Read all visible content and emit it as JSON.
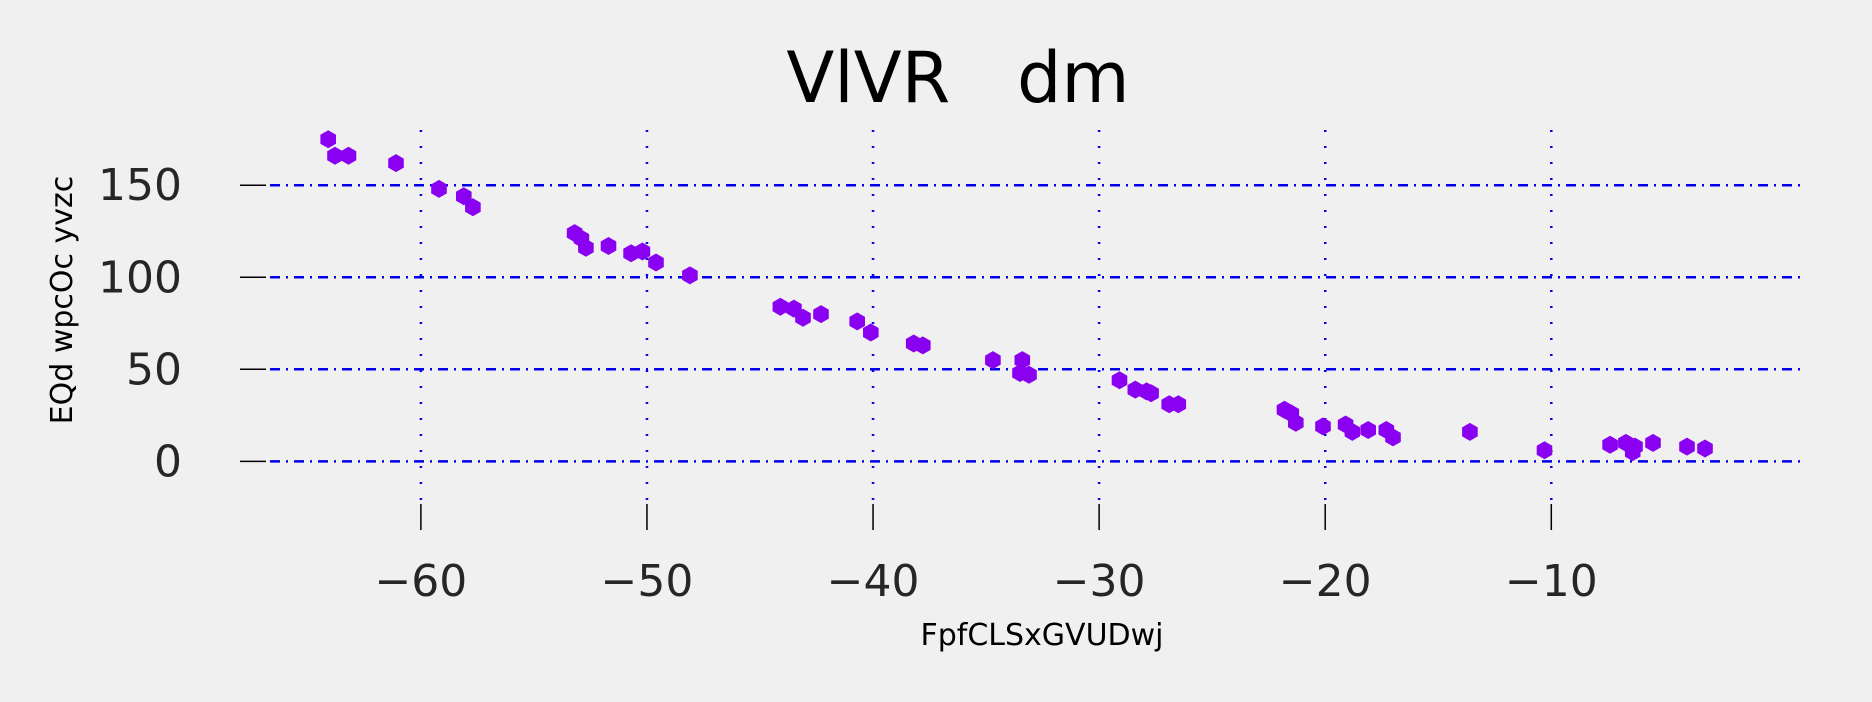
{
  "chart_data": {
    "type": "scatter",
    "title": "VlVR   dm",
    "xlabel": "FpfCLSxGVUDwj",
    "ylabel": "EQd wpcOc yvzc",
    "xlim": [
      -68,
      1
    ],
    "ylim": [
      -21,
      180
    ],
    "x_ticks": [
      -60,
      -50,
      -40,
      -30,
      -20,
      -10
    ],
    "x_tick_labels": [
      "−60",
      "−50",
      "−40",
      "−30",
      "−20",
      "−10"
    ],
    "y_ticks": [
      0,
      50,
      100,
      150
    ],
    "y_tick_labels": [
      "0",
      "50",
      "100",
      "150"
    ],
    "grid": true,
    "grid_color": "#0000ee",
    "marker": "hexagon",
    "marker_color": "#8a00f0",
    "series": [
      {
        "points": [
          [
            -64.1,
            175
          ],
          [
            -63.8,
            166
          ],
          [
            -63.2,
            166
          ],
          [
            -61.1,
            162
          ],
          [
            -59.2,
            148
          ],
          [
            -58.1,
            144
          ],
          [
            -57.7,
            138
          ],
          [
            -53.2,
            124
          ],
          [
            -52.9,
            121
          ],
          [
            -52.7,
            116
          ],
          [
            -51.7,
            117
          ],
          [
            -50.7,
            113
          ],
          [
            -50.2,
            114
          ],
          [
            -49.6,
            108
          ],
          [
            -48.1,
            101
          ],
          [
            -44.1,
            84
          ],
          [
            -43.5,
            83
          ],
          [
            -43.1,
            78
          ],
          [
            -42.3,
            80
          ],
          [
            -40.7,
            76
          ],
          [
            -40.1,
            70
          ],
          [
            -38.2,
            64
          ],
          [
            -37.8,
            63
          ],
          [
            -34.7,
            55
          ],
          [
            -33.4,
            55
          ],
          [
            -33.5,
            48
          ],
          [
            -33.1,
            47
          ],
          [
            -29.1,
            44
          ],
          [
            -28.4,
            39
          ],
          [
            -27.9,
            38
          ],
          [
            -27.7,
            37
          ],
          [
            -26.9,
            31
          ],
          [
            -26.5,
            31
          ],
          [
            -21.8,
            28
          ],
          [
            -21.5,
            26
          ],
          [
            -21.3,
            21
          ],
          [
            -20.1,
            19
          ],
          [
            -19.1,
            20
          ],
          [
            -18.8,
            16
          ],
          [
            -18.1,
            17
          ],
          [
            -17.3,
            17
          ],
          [
            -17.0,
            13
          ],
          [
            -13.6,
            16
          ],
          [
            -10.3,
            6
          ],
          [
            -7.4,
            9
          ],
          [
            -6.7,
            10
          ],
          [
            -6.4,
            5
          ],
          [
            -6.3,
            8
          ],
          [
            -5.5,
            10
          ],
          [
            -4.0,
            8
          ],
          [
            -3.2,
            7
          ]
        ]
      }
    ]
  }
}
